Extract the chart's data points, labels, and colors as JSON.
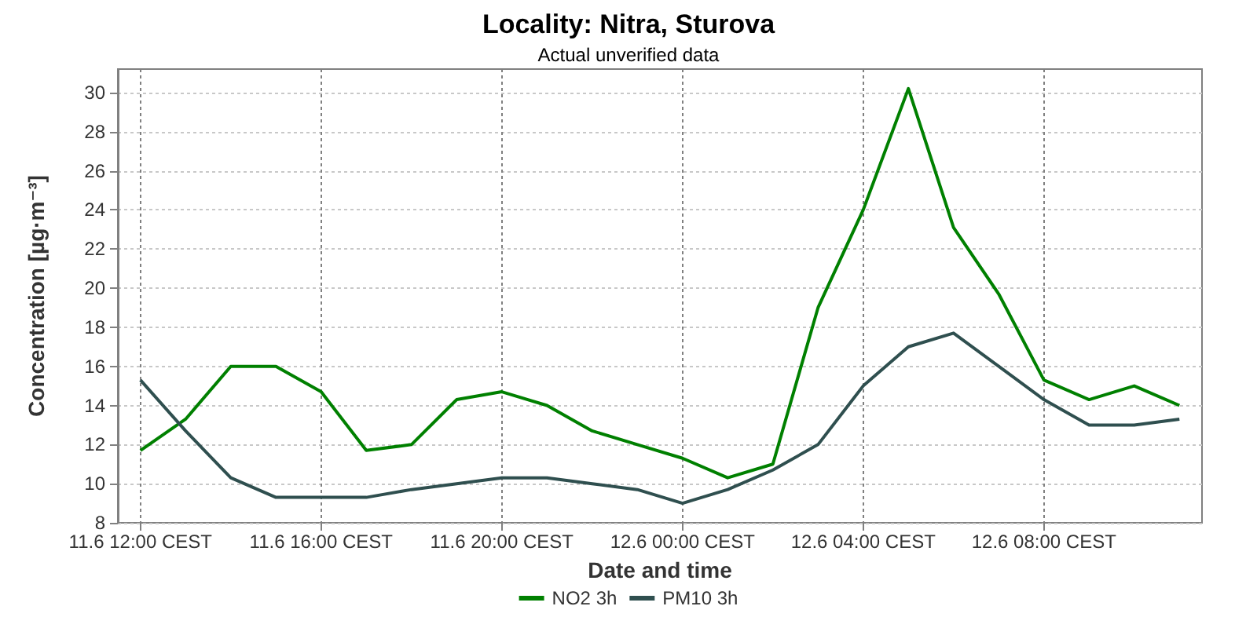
{
  "chart_data": {
    "type": "line",
    "title": "Locality: Nitra, Sturova",
    "subtitle": "Actual unverified data",
    "xlabel": "Date and time",
    "ylabel": "Concentration [µg·m⁻³]",
    "x": [
      "--06-11T12:00",
      "--06-11T13:00",
      "--06-11T14:00",
      "--06-11T15:00",
      "--06-11T16:00",
      "--06-11T17:00",
      "--06-11T18:00",
      "--06-11T19:00",
      "--06-11T20:00",
      "--06-11T21:00",
      "--06-11T22:00",
      "--06-11T23:00",
      "--06-12T00:00",
      "--06-12T01:00",
      "--06-12T02:00",
      "--06-12T03:00",
      "--06-12T04:00",
      "--06-12T05:00",
      "--06-12T06:00",
      "--06-12T07:00",
      "--06-12T08:00",
      "--06-12T09:00",
      "--06-12T10:00",
      "--06-12T11:00"
    ],
    "series": [
      {
        "name": "NO2 3h",
        "color": "#008000",
        "values": [
          11.7,
          13.3,
          16,
          16,
          14.7,
          11.7,
          12,
          14.3,
          14.7,
          14,
          12.7,
          12,
          11.3,
          10.3,
          11,
          19,
          24,
          30.2,
          23.1,
          19.7,
          15.3,
          14.3,
          15,
          14
        ]
      },
      {
        "name": "PM10 3h",
        "color": "#2f4f4f",
        "values": [
          15.3,
          12.7,
          10.3,
          9.3,
          9.3,
          9.3,
          9.7,
          10,
          10.3,
          10.3,
          10,
          9.7,
          9,
          9.7,
          10.7,
          12,
          15,
          17,
          17.7,
          16,
          14.3,
          13,
          13,
          13.3
        ]
      }
    ],
    "xlim": [
      "--06-11T11:30",
      "--06-12T11:30"
    ],
    "xticks": [
      {
        "value": "--06-11T12:00",
        "label": "11.6 12:00 CEST"
      },
      {
        "value": "--06-11T16:00",
        "label": "11.6 16:00 CEST"
      },
      {
        "value": "--06-11T20:00",
        "label": "11.6 20:00 CEST"
      },
      {
        "value": "--06-12T00:00",
        "label": "12.6 00:00 CEST"
      },
      {
        "value": "--06-12T04:00",
        "label": "12.6 04:00 CEST"
      },
      {
        "value": "--06-12T08:00",
        "label": "12.6 08:00 CEST"
      }
    ],
    "ylim": [
      8,
      31.2
    ],
    "yticks": [
      8,
      10,
      12,
      14,
      16,
      18,
      20,
      22,
      24,
      26,
      28,
      30
    ],
    "grid": true,
    "legend": "bottom",
    "marker": "none",
    "line_style": "solid"
  }
}
